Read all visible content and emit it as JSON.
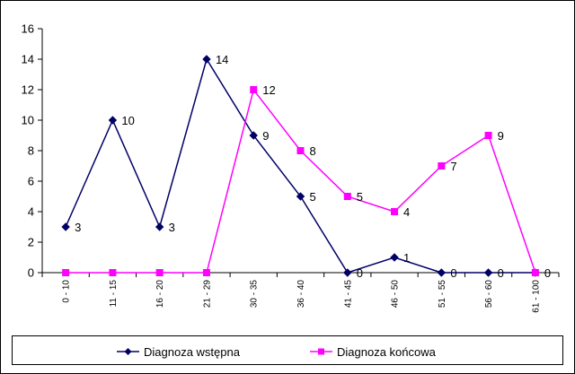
{
  "chart_data": {
    "type": "line",
    "categories": [
      "0 - 10",
      "11 - 15",
      "16 - 20",
      "21 - 29",
      "30 - 35",
      "36 - 40",
      "41 - 45",
      "46 - 50",
      "51 - 55",
      "56 - 60",
      "61 - 100"
    ],
    "ylim": [
      0,
      16
    ],
    "yticks": [
      "0",
      "2",
      "4",
      "6",
      "8",
      "10",
      "12",
      "14",
      "16"
    ],
    "grid": false,
    "legend": "bottom",
    "series": [
      {
        "name": "Diagnoza wstępna",
        "color": "#000066",
        "marker": "diamond",
        "values": [
          3,
          10,
          3,
          14,
          9,
          5,
          0,
          1,
          0,
          0,
          0
        ],
        "labels": [
          "3",
          "10",
          "3",
          "14",
          "9",
          "5",
          "0",
          "1",
          "0",
          "0",
          "0"
        ]
      },
      {
        "name": "Diagnoza końcowa",
        "color": "#ff00ff",
        "marker": "square",
        "values": [
          0,
          0,
          0,
          0,
          12,
          8,
          5,
          4,
          7,
          9,
          0
        ],
        "labels": [
          "",
          "",
          "",
          "",
          "12",
          "8",
          "5",
          "4",
          "7",
          "9",
          ""
        ]
      }
    ]
  }
}
